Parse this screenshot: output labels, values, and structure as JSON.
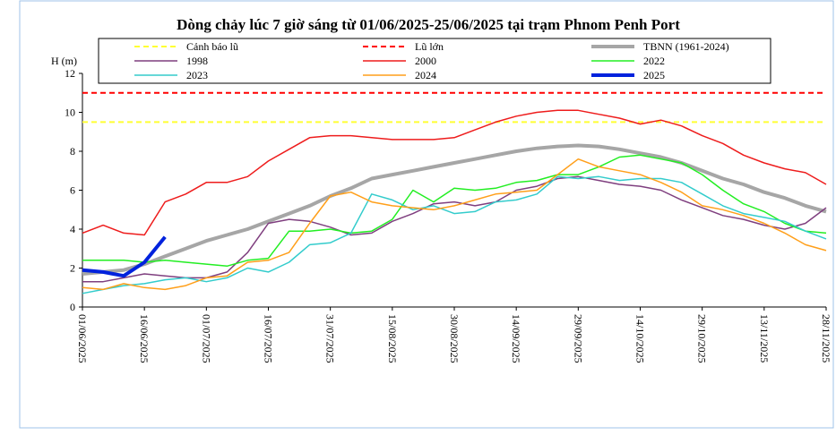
{
  "chart_data": {
    "type": "line",
    "title": "Dòng chảy lúc 7 giờ sáng từ 01/06/2025-25/06/2025 tại trạm Phnom Penh Port",
    "y_label": "H (m)",
    "ylim": [
      0,
      12
    ],
    "yticks": [
      0,
      2,
      4,
      6,
      8,
      10,
      12
    ],
    "xlim": [
      "01/06/2025",
      "28/11/2025"
    ],
    "xticks": [
      "01/06/2025",
      "16/06/2025",
      "01/07/2025",
      "16/07/2025",
      "31/07/2025",
      "15/08/2025",
      "30/08/2025",
      "14/09/2025",
      "29/09/2025",
      "14/10/2025",
      "29/10/2025",
      "13/11/2025",
      "28/11/2025"
    ],
    "x": [
      "01/06/2025",
      "06/06/2025",
      "11/06/2025",
      "16/06/2025",
      "21/06/2025",
      "26/06/2025",
      "01/07/2025",
      "06/07/2025",
      "11/07/2025",
      "16/07/2025",
      "21/07/2025",
      "26/07/2025",
      "31/07/2025",
      "05/08/2025",
      "10/08/2025",
      "15/08/2025",
      "20/08/2025",
      "25/08/2025",
      "30/08/2025",
      "04/09/2025",
      "09/09/2025",
      "14/09/2025",
      "19/09/2025",
      "24/09/2025",
      "29/09/2025",
      "04/10/2025",
      "09/10/2025",
      "14/10/2025",
      "19/10/2025",
      "24/10/2025",
      "29/10/2025",
      "03/11/2025",
      "08/11/2025",
      "13/11/2025",
      "18/11/2025",
      "23/11/2025",
      "28/11/2025"
    ],
    "hlines": [
      {
        "name": "Cảnh báo lũ",
        "color": "#ffff33",
        "value": 9.5
      },
      {
        "name": "Lũ lớn",
        "color": "#ff0000",
        "value": 11
      }
    ],
    "series": [
      {
        "name": "TBNN (1961-2024)",
        "color": "#a6a6a6",
        "width": 4,
        "values": [
          1.7,
          1.8,
          1.9,
          2.2,
          2.6,
          3.0,
          3.4,
          3.7,
          4.0,
          4.4,
          4.8,
          5.2,
          5.7,
          6.1,
          6.6,
          6.8,
          7.0,
          7.2,
          7.4,
          7.6,
          7.8,
          8.0,
          8.15,
          8.25,
          8.3,
          8.25,
          8.1,
          7.9,
          7.7,
          7.4,
          7.0,
          6.6,
          6.3,
          5.9,
          5.6,
          5.2,
          4.9
        ]
      },
      {
        "name": "1998",
        "color": "#7f3f7f",
        "width": 1.5,
        "values": [
          1.3,
          1.3,
          1.5,
          1.7,
          1.6,
          1.5,
          1.5,
          1.8,
          2.8,
          4.3,
          4.5,
          4.4,
          4.1,
          3.7,
          3.8,
          4.4,
          4.8,
          5.3,
          5.4,
          5.2,
          5.4,
          6.0,
          6.2,
          6.6,
          6.7,
          6.5,
          6.3,
          6.2,
          6.0,
          5.5,
          5.1,
          4.7,
          4.5,
          4.2,
          4.0,
          4.3,
          5.1
        ]
      },
      {
        "name": "2000",
        "color": "#ee1c1c",
        "width": 1.5,
        "values": [
          3.8,
          4.2,
          3.8,
          3.7,
          5.4,
          5.8,
          6.4,
          6.4,
          6.7,
          7.5,
          8.1,
          8.7,
          8.8,
          8.8,
          8.7,
          8.6,
          8.6,
          8.6,
          8.7,
          9.1,
          9.5,
          9.8,
          10.0,
          10.1,
          10.1,
          9.9,
          9.7,
          9.4,
          9.6,
          9.3,
          8.8,
          8.4,
          7.8,
          7.4,
          7.1,
          6.9,
          6.3
        ]
      },
      {
        "name": "2022",
        "color": "#22ee22",
        "width": 1.5,
        "values": [
          2.4,
          2.4,
          2.4,
          2.3,
          2.4,
          2.3,
          2.2,
          2.1,
          2.4,
          2.5,
          3.9,
          3.9,
          4.0,
          3.8,
          3.9,
          4.5,
          6.0,
          5.4,
          6.1,
          6.0,
          6.1,
          6.4,
          6.5,
          6.8,
          6.8,
          7.2,
          7.7,
          7.8,
          7.6,
          7.4,
          6.8,
          6.0,
          5.3,
          4.9,
          4.3,
          3.9,
          3.8
        ]
      },
      {
        "name": "2023",
        "color": "#33cccc",
        "width": 1.5,
        "values": [
          0.7,
          0.9,
          1.1,
          1.2,
          1.4,
          1.5,
          1.3,
          1.5,
          2.0,
          1.8,
          2.3,
          3.2,
          3.3,
          3.8,
          5.8,
          5.5,
          5.0,
          5.2,
          4.8,
          4.9,
          5.4,
          5.5,
          5.8,
          6.7,
          6.6,
          6.7,
          6.5,
          6.6,
          6.6,
          6.4,
          5.8,
          5.2,
          4.8,
          4.6,
          4.4,
          3.9,
          3.5
        ]
      },
      {
        "name": "2024",
        "color": "#ff9f1a",
        "width": 1.5,
        "values": [
          1.0,
          0.9,
          1.2,
          1.0,
          0.9,
          1.1,
          1.5,
          1.6,
          2.3,
          2.4,
          2.8,
          4.3,
          5.7,
          5.9,
          5.4,
          5.2,
          5.1,
          5.0,
          5.2,
          5.5,
          5.8,
          5.9,
          6.0,
          6.8,
          7.6,
          7.2,
          7.0,
          6.8,
          6.4,
          5.9,
          5.2,
          5.0,
          4.7,
          4.3,
          3.8,
          3.2,
          2.9
        ]
      },
      {
        "name": "2025",
        "color": "#0022dd",
        "width": 4,
        "values": [
          1.9,
          1.8,
          1.6,
          2.3,
          3.6,
          null,
          null,
          null,
          null,
          null,
          null,
          null,
          null,
          null,
          null,
          null,
          null,
          null,
          null,
          null,
          null,
          null,
          null,
          null,
          null,
          null,
          null,
          null,
          null,
          null,
          null,
          null,
          null,
          null,
          null,
          null,
          null
        ]
      }
    ]
  }
}
